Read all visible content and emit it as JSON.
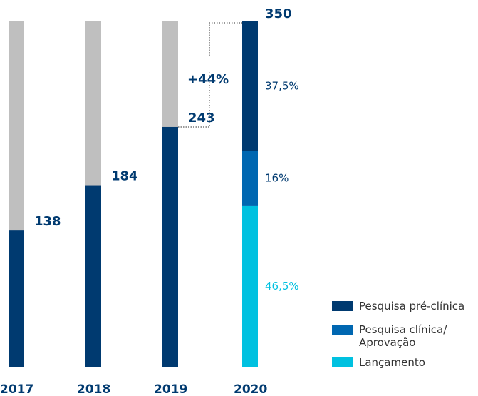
{
  "chart_data": {
    "type": "bar",
    "categories": [
      "2017",
      "2018",
      "2019",
      "2020"
    ],
    "values": [
      138,
      184,
      243,
      350
    ],
    "color": "#003a70",
    "background_color": "#bfbfbf",
    "annotation": "+44%",
    "series": [
      {
        "name": "Pesquisa pré-clínica",
        "color": "#003a70",
        "label_color": "#003a70",
        "values": [
          null,
          null,
          null,
          37.5
        ],
        "value_labels": [
          null,
          null,
          null,
          "37,5%"
        ]
      },
      {
        "name": "Pesquisa clínica/\nAprovação",
        "color": "#0067b1",
        "label_color": "#003a70",
        "values": [
          null,
          null,
          null,
          16
        ],
        "value_labels": [
          null,
          null,
          null,
          "16%"
        ]
      },
      {
        "name": "Lançamento",
        "color": "#00c1e0",
        "label_color": "#00c1e0",
        "values": [
          null,
          null,
          null,
          46.5
        ],
        "value_labels": [
          null,
          null,
          null,
          "46,5%"
        ]
      }
    ]
  }
}
